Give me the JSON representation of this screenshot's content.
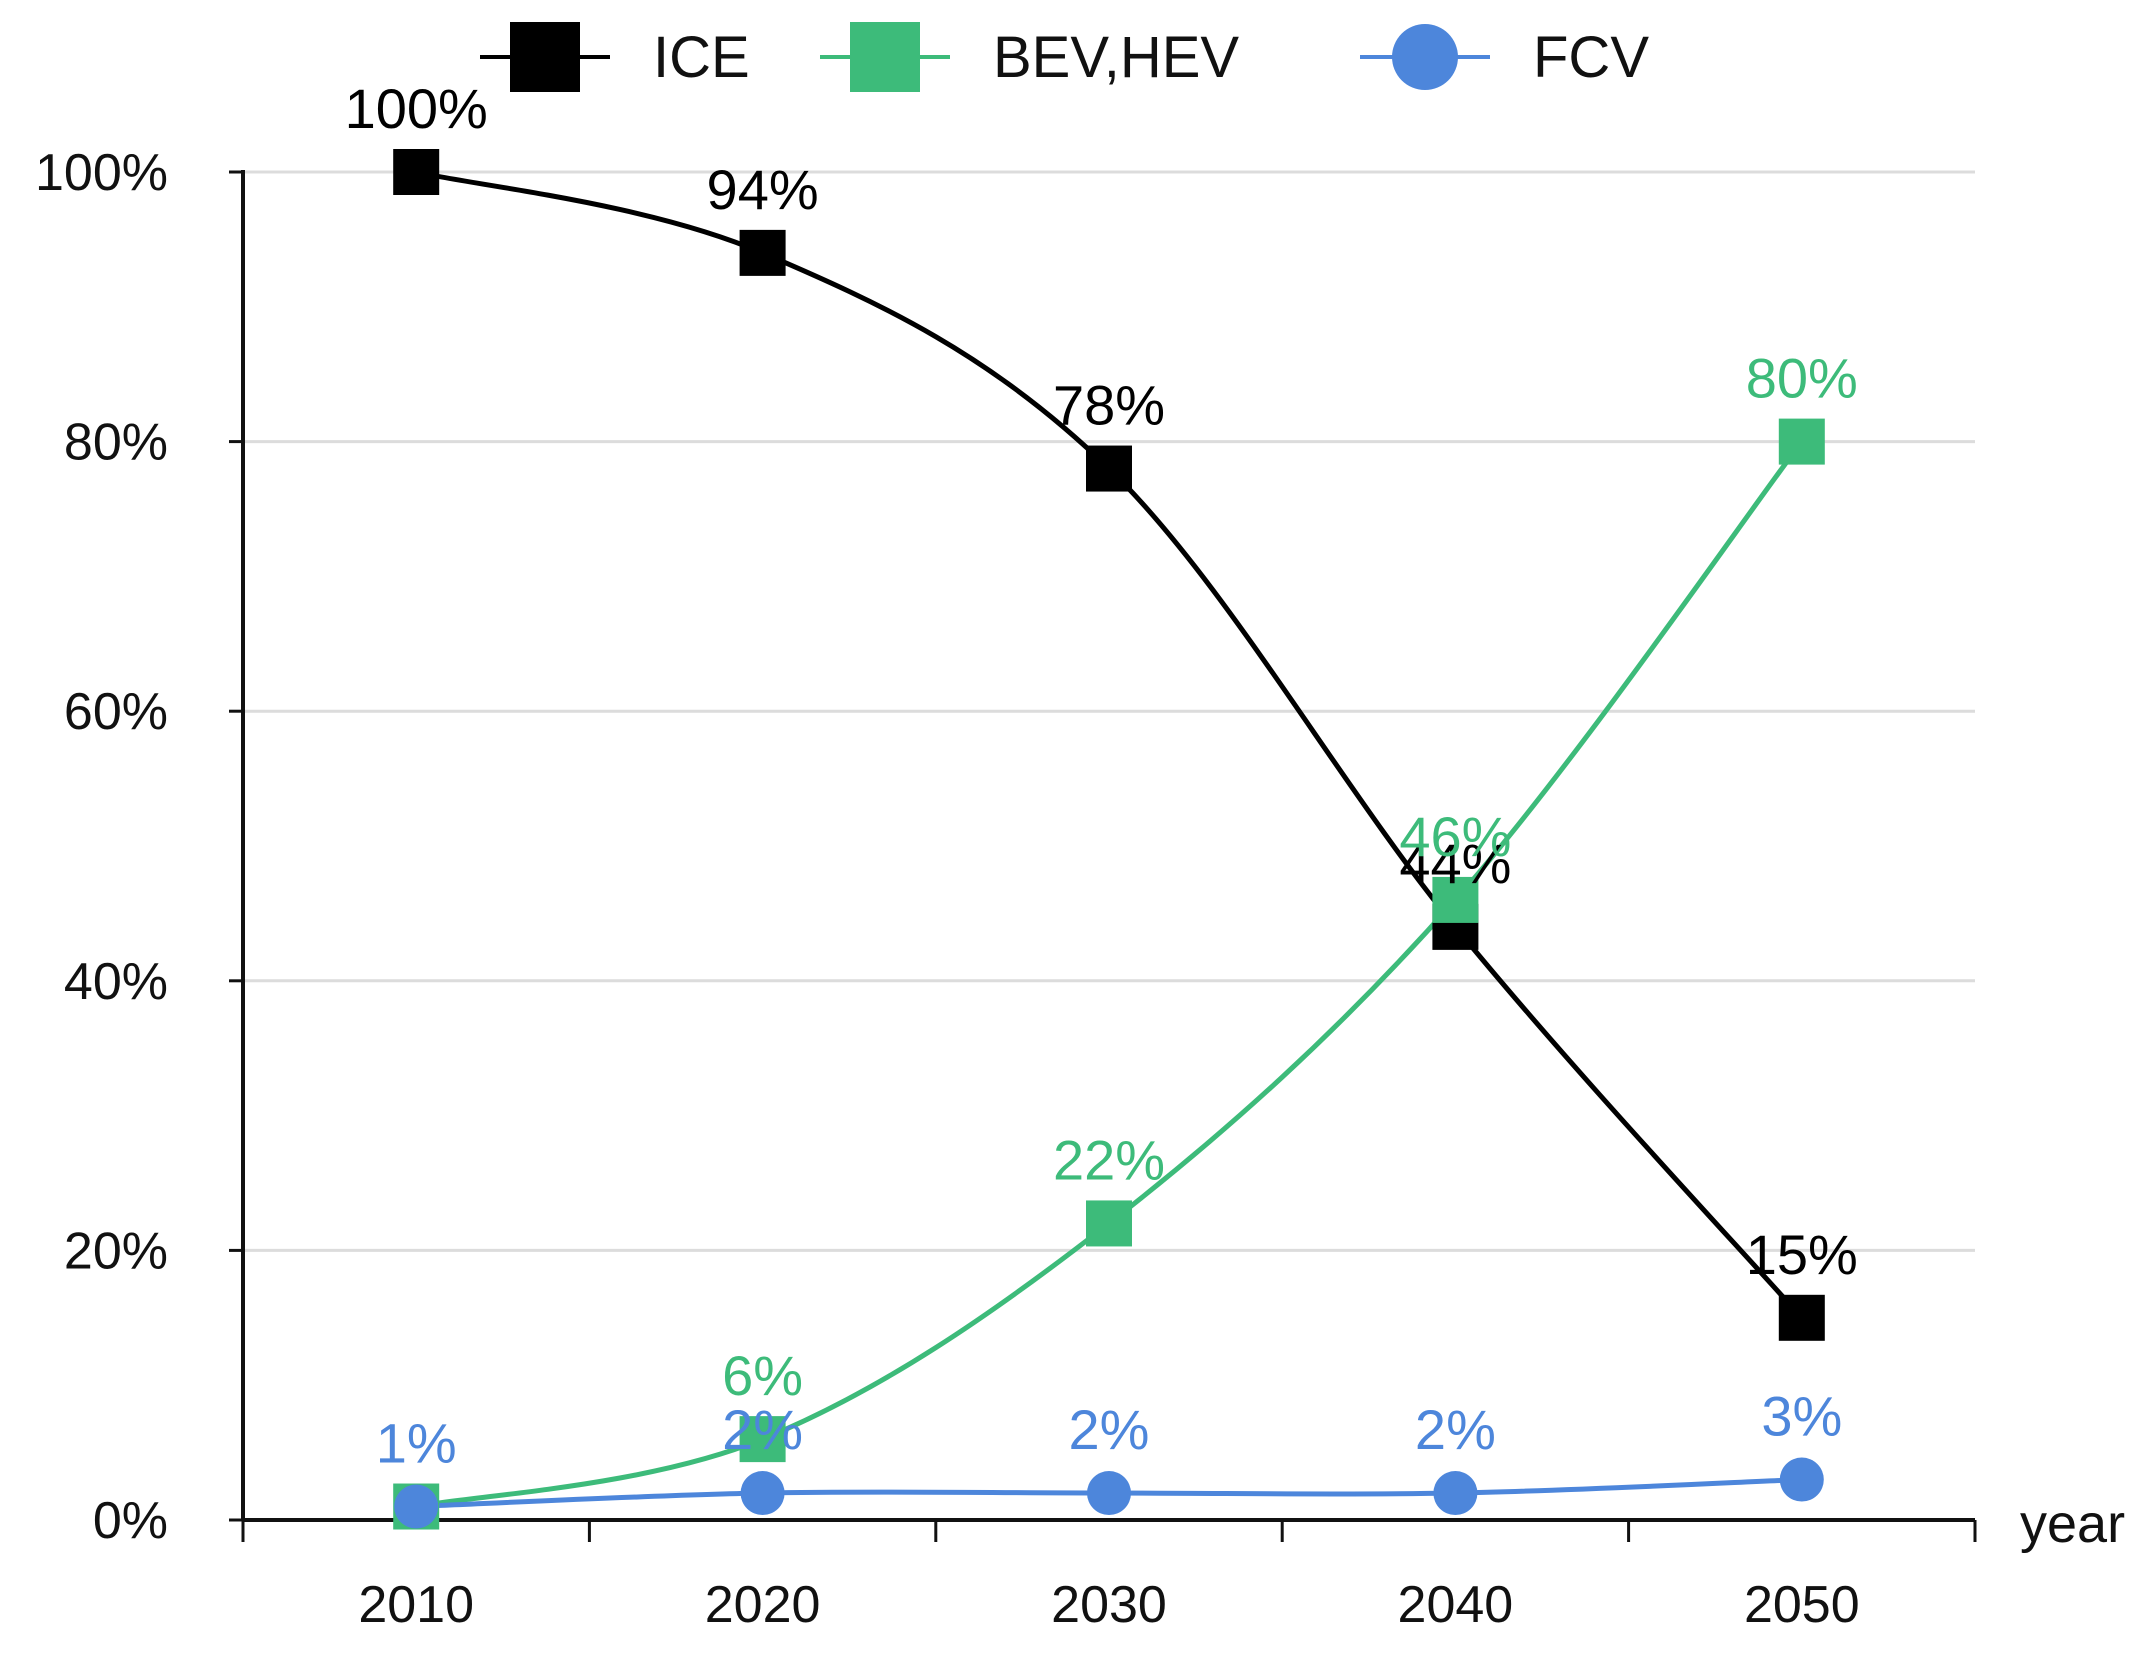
{
  "chart_data": {
    "type": "line",
    "title": "",
    "xlabel": "year",
    "ylabel": "",
    "categories": [
      "2010",
      "2020",
      "2030",
      "2040",
      "2050"
    ],
    "ylim": [
      0,
      100
    ],
    "yticks": [
      "0%",
      "20%",
      "40%",
      "60%",
      "80%",
      "100%"
    ],
    "yticks_values": [
      0,
      20,
      40,
      60,
      80,
      100
    ],
    "grid": true,
    "legend_position": "top",
    "series": [
      {
        "name": "ICE",
        "color": "#000000",
        "marker": "square",
        "values": [
          100,
          94,
          78,
          44,
          15
        ],
        "labels": [
          "100%",
          "94%",
          "78%",
          "44%",
          "15%"
        ]
      },
      {
        "name": "BEV,HEV",
        "color": "#3dbb7a",
        "marker": "square",
        "values": [
          1,
          6,
          22,
          46,
          80
        ],
        "labels": [
          "",
          "6%",
          "22%",
          "46%",
          "80%"
        ]
      },
      {
        "name": "FCV",
        "color": "#4d86db",
        "marker": "circle",
        "values": [
          1,
          2,
          2,
          2,
          3
        ],
        "labels": [
          "1%",
          "2%",
          "2%",
          "2%",
          "3%"
        ]
      }
    ]
  }
}
